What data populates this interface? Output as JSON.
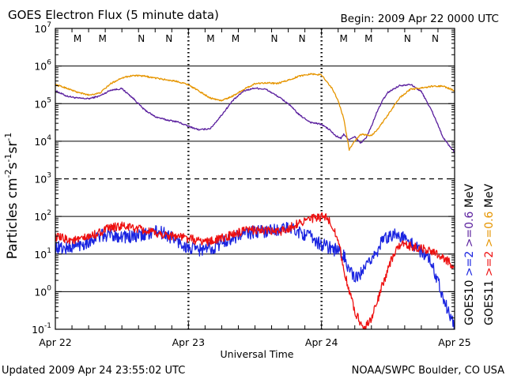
{
  "header": {
    "title": "GOES Electron Flux (5 minute data)",
    "begin": "Begin: 2009 Apr 22 0000 UTC"
  },
  "footer": {
    "updated": "Updated 2009 Apr 24 23:55:02 UTC",
    "credit": "NOAA/SWPC Boulder, CO USA"
  },
  "colors": {
    "goes10_ge06": "#5a1f9e",
    "goes11_ge06": "#e69500",
    "goes10_ge2": "#1a24e0",
    "goes11_ge2": "#ee1010",
    "m_marker": "#1414c8",
    "n_marker": "#d01010"
  },
  "chart_data": {
    "type": "line",
    "xlabel": "Universal Time",
    "ylabel": "Particles cm⁻²s⁻¹sr⁻¹",
    "ylabel_parts": {
      "base": "Particles cm",
      "e1": "-2",
      "s": "s",
      "e2": "-1",
      "sr": "sr",
      "e3": "-1"
    },
    "yscale": "log",
    "ylim": [
      0.1,
      10000000
    ],
    "xlim": [
      0,
      72
    ],
    "x_unit": "hours since Apr 22 0000 UTC",
    "x_ticks": [
      {
        "x": 0,
        "label": "Apr 22"
      },
      {
        "x": 24,
        "label": "Apr 23"
      },
      {
        "x": 48,
        "label": "Apr 24"
      },
      {
        "x": 72,
        "label": "Apr 25"
      }
    ],
    "y_ticks": [
      {
        "exp": -1,
        "base": "10",
        "sup": "-1"
      },
      {
        "exp": 0,
        "base": "10",
        "sup": "0"
      },
      {
        "exp": 1,
        "base": "10",
        "sup": "1"
      },
      {
        "exp": 2,
        "base": "10",
        "sup": "2"
      },
      {
        "exp": 3,
        "base": "10",
        "sup": "3"
      },
      {
        "exp": 4,
        "base": "10",
        "sup": "4"
      },
      {
        "exp": 5,
        "base": "10",
        "sup": "5"
      },
      {
        "exp": 6,
        "base": "10",
        "sup": "6"
      },
      {
        "exp": 7,
        "base": "10",
        "sup": "7"
      }
    ],
    "solid_gridlines": [
      0,
      1,
      2,
      4,
      5,
      6
    ],
    "dashed_gridlines": [
      3
    ],
    "markers": [
      {
        "x": 4,
        "label": "M",
        "kind": "m"
      },
      {
        "x": 8.5,
        "label": "M",
        "kind": "n"
      },
      {
        "x": 15.5,
        "label": "N",
        "kind": "m"
      },
      {
        "x": 20.5,
        "label": "N",
        "kind": "n"
      },
      {
        "x": 28,
        "label": "M",
        "kind": "m"
      },
      {
        "x": 32.5,
        "label": "M",
        "kind": "n"
      },
      {
        "x": 39.5,
        "label": "N",
        "kind": "m"
      },
      {
        "x": 44.5,
        "label": "N",
        "kind": "n"
      },
      {
        "x": 52,
        "label": "M",
        "kind": "m"
      },
      {
        "x": 56.5,
        "label": "M",
        "kind": "n"
      },
      {
        "x": 63.5,
        "label": "N",
        "kind": "m"
      },
      {
        "x": 68.5,
        "label": "N",
        "kind": "n"
      }
    ],
    "legend": {
      "placement": "right",
      "groups": [
        {
          "sat": "GOES10",
          "ge2": ">=2",
          "ge06": ">=0.6",
          "unit": "MeV",
          "color_ge2": "#1a24e0",
          "color_ge06": "#5a1f9e"
        },
        {
          "sat": "GOES11",
          "ge2": ">=2",
          "ge06": ">=0.6",
          "unit": "MeV",
          "color_ge2": "#ee1010",
          "color_ge06": "#e69500"
        }
      ]
    },
    "series": [
      {
        "name": "GOES10 >=0.6 MeV",
        "color": "#5a1f9e",
        "noise": 0.02,
        "x": [
          0,
          2,
          4,
          6,
          8,
          10,
          12,
          14,
          16,
          18,
          20,
          22,
          24,
          26,
          28,
          30,
          32,
          34,
          36,
          38,
          40,
          42,
          44,
          46,
          48,
          49.5,
          50.5,
          51.5,
          52,
          53,
          54,
          55,
          56,
          57,
          58,
          59,
          60,
          62,
          64,
          66,
          68,
          70,
          72
        ],
        "y": [
          220000.0,
          160000.0,
          140000.0,
          135000.0,
          160000.0,
          230000.0,
          250000.0,
          140000.0,
          70000.0,
          45000.0,
          37000.0,
          33000.0,
          25000.0,
          20000.0,
          22000.0,
          50000.0,
          120000.0,
          220000.0,
          260000.0,
          240000.0,
          160000.0,
          100000.0,
          50000.0,
          32000.0,
          28000.0,
          20000.0,
          14000.0,
          12000.0,
          15000.0,
          11000.0,
          13000.0,
          9000.0,
          12000.0,
          25000.0,
          60000.0,
          120000.0,
          200000.0,
          300000.0,
          330000.0,
          210000.0,
          60000.0,
          12000.0,
          5000.0
        ]
      },
      {
        "name": "GOES11 >=0.6 MeV",
        "color": "#e69500",
        "noise": 0.02,
        "x": [
          0,
          2,
          4,
          6,
          8,
          10,
          12,
          14,
          16,
          18,
          20,
          22,
          24,
          26,
          28,
          30,
          32,
          34,
          36,
          38,
          40,
          42,
          44,
          46,
          48,
          49,
          50,
          51,
          52,
          53,
          54,
          55,
          56,
          57,
          58,
          60,
          62,
          64,
          66,
          68,
          70,
          72
        ],
        "y": [
          320000.0,
          260000.0,
          200000.0,
          170000.0,
          190000.0,
          340000.0,
          490000.0,
          560000.0,
          540000.0,
          480000.0,
          430000.0,
          390000.0,
          320000.0,
          210000.0,
          140000.0,
          120000.0,
          160000.0,
          240000.0,
          340000.0,
          360000.0,
          340000.0,
          420000.0,
          540000.0,
          620000.0,
          580000.0,
          380000.0,
          240000.0,
          120000.0,
          40000.0,
          6000.0,
          10000.0,
          15000.0,
          15000.0,
          14000.0,
          20000.0,
          50000.0,
          140000.0,
          240000.0,
          260000.0,
          290000.0,
          290000.0,
          220000.0
        ]
      },
      {
        "name": "GOES10 >=2 MeV",
        "color": "#1a24e0",
        "noise": 0.18,
        "x": [
          0,
          2,
          4,
          6,
          8,
          10,
          12,
          14,
          16,
          18,
          20,
          22,
          24,
          26,
          28,
          30,
          32,
          34,
          36,
          38,
          40,
          42,
          44,
          46,
          48,
          50,
          51,
          52,
          53,
          54,
          55,
          56,
          57,
          58,
          59,
          60,
          61,
          62,
          63,
          64,
          65,
          66,
          67,
          68,
          69,
          70,
          71,
          72
        ],
        "y": [
          15,
          14,
          17,
          22,
          30,
          33,
          30,
          28,
          32,
          40,
          34,
          22,
          14,
          13,
          14,
          20,
          28,
          34,
          38,
          42,
          45,
          48,
          40,
          28,
          18,
          14,
          12,
          9,
          4,
          2,
          3,
          4,
          8,
          12,
          22,
          30,
          35,
          30,
          25,
          20,
          15,
          12,
          9,
          5,
          2,
          0.7,
          0.25,
          0.12
        ]
      },
      {
        "name": "GOES11 >=2 MeV",
        "color": "#ee1010",
        "noise": 0.12,
        "x": [
          0,
          2,
          4,
          6,
          8,
          10,
          12,
          14,
          16,
          18,
          20,
          22,
          24,
          26,
          28,
          30,
          32,
          34,
          36,
          38,
          40,
          42,
          44,
          46,
          48,
          49,
          50,
          51,
          52,
          53,
          54,
          55,
          56,
          57,
          58,
          59,
          60,
          61,
          62,
          63,
          64,
          65,
          66,
          67,
          68,
          69,
          70,
          71,
          72
        ],
        "y": [
          28,
          25,
          23,
          28,
          38,
          50,
          55,
          50,
          42,
          35,
          32,
          30,
          26,
          22,
          22,
          26,
          33,
          40,
          45,
          42,
          38,
          48,
          70,
          85,
          95,
          90,
          55,
          25,
          4,
          1,
          0.3,
          0.15,
          0.12,
          0.2,
          0.5,
          1.5,
          4,
          10,
          16,
          18,
          16,
          15,
          14,
          13,
          12,
          10,
          8,
          6,
          5
        ]
      }
    ]
  }
}
